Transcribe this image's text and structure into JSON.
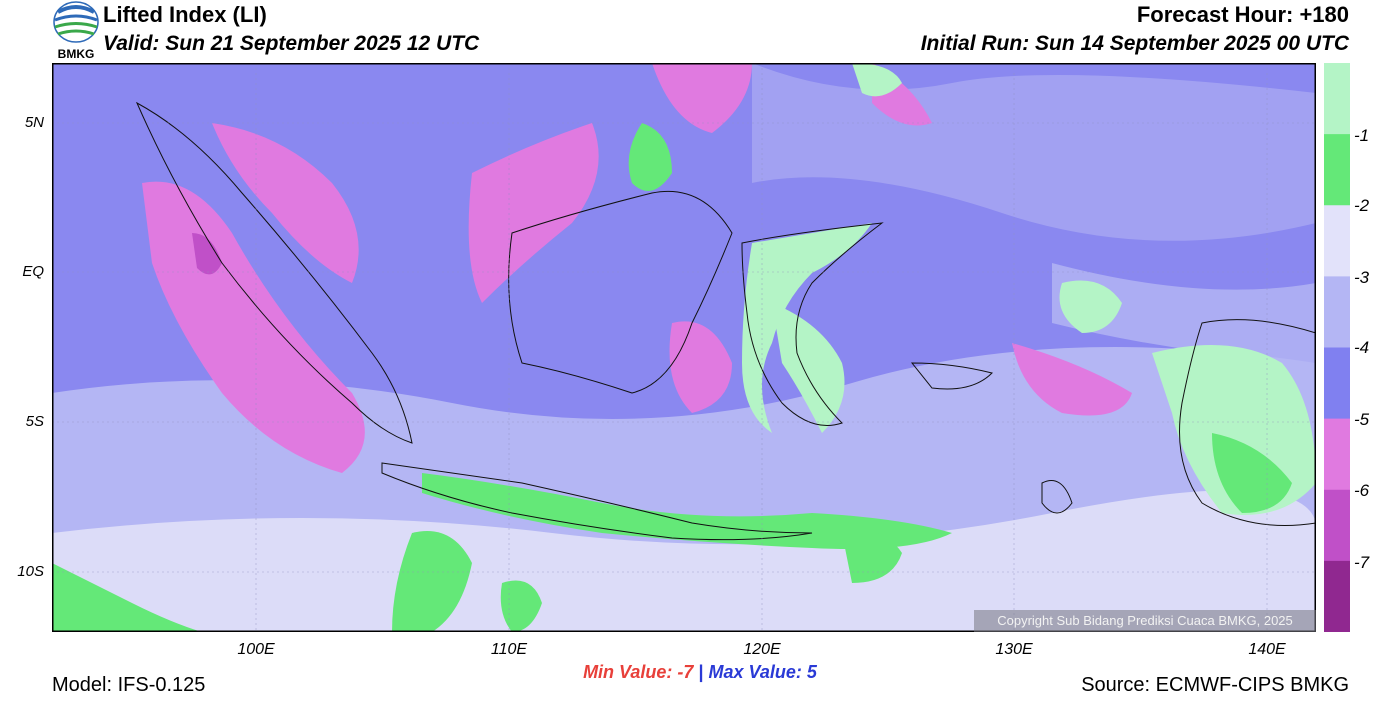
{
  "header": {
    "title": "Lifted Index (LI)",
    "valid": "Valid: Sun 21 September 2025 12 UTC",
    "forecast_hour": "Forecast Hour: +180",
    "initial_run": "Initial Run: Sun 14 September 2025 00 UTC"
  },
  "logo": {
    "text": "BMKG"
  },
  "axes": {
    "lat_labels": [
      "5N",
      "EQ",
      "5S",
      "10S"
    ],
    "lon_labels": [
      "100E",
      "110E",
      "120E",
      "130E",
      "140E"
    ]
  },
  "colorbar": {
    "labels": [
      "-1",
      "-2",
      "-3",
      "-4",
      "-5",
      "-6",
      "-7"
    ],
    "colors": [
      "#b4f4c6",
      "#64e878",
      "#e2e2fa",
      "#b4b6f4",
      "#8080f0",
      "#e07ae0",
      "#c050c8",
      "#902890"
    ]
  },
  "stats": {
    "min_label": "Min Value:",
    "min_value": "-7",
    "separator": "|",
    "max_label": "Max Value:",
    "max_value": "5"
  },
  "footer": {
    "model": "Model: IFS-0.125",
    "source": "Source: ECMWF-CIPS BMKG",
    "copyright": "Copyright Sub Bidang Prediksi Cuaca BMKG, 2025"
  }
}
